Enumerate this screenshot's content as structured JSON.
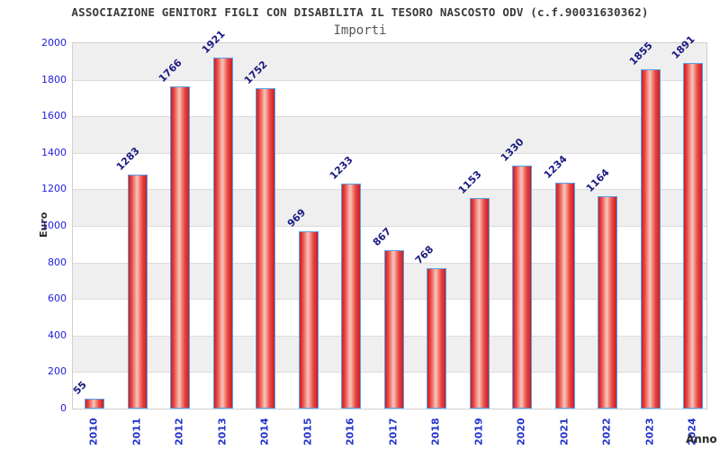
{
  "chart_data": {
    "type": "bar",
    "title": "ASSOCIAZIONE GENITORI FIGLI CON DISABILITA IL TESORO NASCOSTO ODV (c.f.90031630362)",
    "subtitle": "Importi",
    "xlabel": "Anno",
    "ylabel": "Euro",
    "categories": [
      "2010",
      "2011",
      "2012",
      "2013",
      "2014",
      "2015",
      "2016",
      "2017",
      "2018",
      "2019",
      "2020",
      "2021",
      "2022",
      "2023",
      "2024"
    ],
    "values": [
      55,
      1283,
      1766,
      1921,
      1752,
      969,
      1233,
      867,
      768,
      1153,
      1330,
      1234,
      1164,
      1855,
      1891
    ],
    "ylim": [
      0,
      2000
    ],
    "ytick_step": 200,
    "grid": "horizontal-bands",
    "legend": "none",
    "colors": {
      "bar_fill_dark": "#c62026",
      "bar_fill_mid": "#ea4440",
      "bar_fill_light": "#f8c6ba",
      "bar_border": "#5a9fe8",
      "y_tick_label": "#2222dd",
      "year_label": "#2233cc",
      "value_label": "#1a1a80",
      "band_gray": "#efefef",
      "band_white": "#ffffff",
      "grid_line": "#dcdcdc",
      "plot_border": "#cfcfcf",
      "title_color": "#3a3a3a",
      "subtitle_color": "#575757",
      "axis_text": "#2b2b2b"
    }
  }
}
